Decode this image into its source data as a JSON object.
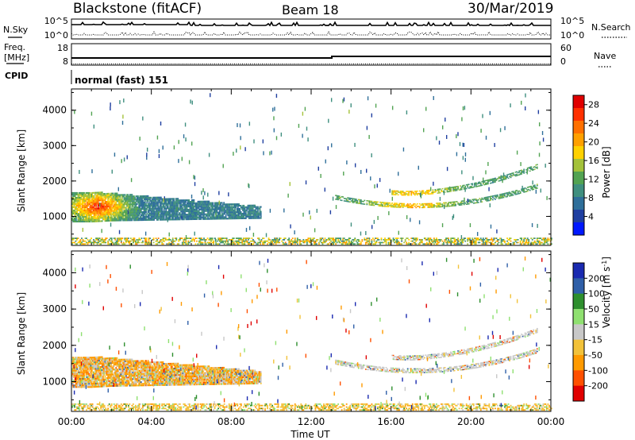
{
  "header": {
    "station": "Blackstone (fitACF)",
    "beam": "Beam 18",
    "date": "30/Mar/2019"
  },
  "noise_panel": {
    "left_label": "N.Sky",
    "right_label": "N.Search",
    "left_top_tick": "10^5",
    "left_bottom_tick": "10^0",
    "right_top_tick": "10^5",
    "right_bottom_tick": "10^0",
    "left_top_value": 100000,
    "left_bottom_value": 1
  },
  "freq_panel": {
    "left_label_line1": "Freq.",
    "left_label_line2": "[MHz]",
    "left_ticks": [
      "18",
      "8"
    ],
    "right_label": "Nave",
    "right_ticks": [
      "60",
      "0"
    ],
    "cpid_label": "CPID",
    "program": "normal (fast) 151"
  },
  "icons": {
    "n_search_line": "dotted-line-icon",
    "nave_line": "dotted-line-icon",
    "n_sky_line": "solid-line-icon",
    "freq_line": "solid-line-icon"
  },
  "chart_data": [
    {
      "type": "heatmap",
      "panel": "power",
      "ylabel": "Slant Range [km]",
      "y_ticks": [
        "1000",
        "2000",
        "3000",
        "4000"
      ],
      "ylim": [
        180,
        4600
      ],
      "x_ticks": [
        "00:00",
        "04:00",
        "08:00",
        "12:00",
        "16:00",
        "20:00",
        "00:00"
      ],
      "xlim_hours": [
        0,
        24
      ],
      "colorbar_label": "Power [dB]",
      "colorbar_ticks": [
        "28",
        "24",
        "20",
        "16",
        "12",
        "8",
        "4"
      ],
      "colorbar_range": [
        0,
        30
      ],
      "colorbar_colors": [
        "#0018ff",
        "#1f3fa0",
        "#2f6f9a",
        "#3f8f7f",
        "#52a352",
        "#a4c23a",
        "#ffd100",
        "#ffa000",
        "#ff7000",
        "#ff3000",
        "#e00000"
      ],
      "features": [
        {
          "name": "early echo band",
          "hours": [
            0.0,
            9.5
          ],
          "range_km": [
            800,
            1750
          ],
          "peak_power_db": 28
        },
        {
          "name": "evening arc",
          "hours": [
            13.0,
            23.3
          ],
          "range_km": [
            1100,
            2400
          ],
          "peak_power_db": 18
        },
        {
          "name": "near-range ground band",
          "hours": [
            0.0,
            24.0
          ],
          "range_km": [
            180,
            400
          ],
          "peak_power_db": 22
        }
      ]
    },
    {
      "type": "heatmap",
      "panel": "velocity",
      "ylabel": "Slant Range [km]",
      "y_ticks": [
        "1000",
        "2000",
        "3000",
        "4000"
      ],
      "ylim": [
        180,
        4600
      ],
      "x_ticks": [
        "00:00",
        "04:00",
        "08:00",
        "12:00",
        "16:00",
        "20:00",
        "00:00"
      ],
      "xlim_hours": [
        0,
        24
      ],
      "xlabel": "Time UT",
      "colorbar_label": "Velocity [m s^-1]",
      "colorbar_ticks": [
        "200",
        "100",
        "50",
        "15",
        "-15",
        "-50",
        "-100",
        "-200"
      ],
      "colorbar_range": [
        -250,
        250
      ],
      "colorbar_colors": [
        "#e00000",
        "#ff5000",
        "#ff9a00",
        "#f2c23a",
        "#c8c8c8",
        "#8fe070",
        "#2e8f2e",
        "#2f5fa8",
        "#1a2ab0"
      ],
      "features": [
        {
          "name": "early echo band",
          "hours": [
            0.0,
            9.5
          ],
          "range_km": [
            800,
            1750
          ],
          "dominant_velocity": "-50"
        },
        {
          "name": "evening arc",
          "hours": [
            13.0,
            23.3
          ],
          "range_km": [
            1100,
            2400
          ],
          "dominant_velocity": "-15 to 15"
        },
        {
          "name": "near-range ground band",
          "hours": [
            0.0,
            24.0
          ],
          "range_km": [
            180,
            400
          ],
          "dominant_velocity": "-50"
        }
      ]
    }
  ]
}
